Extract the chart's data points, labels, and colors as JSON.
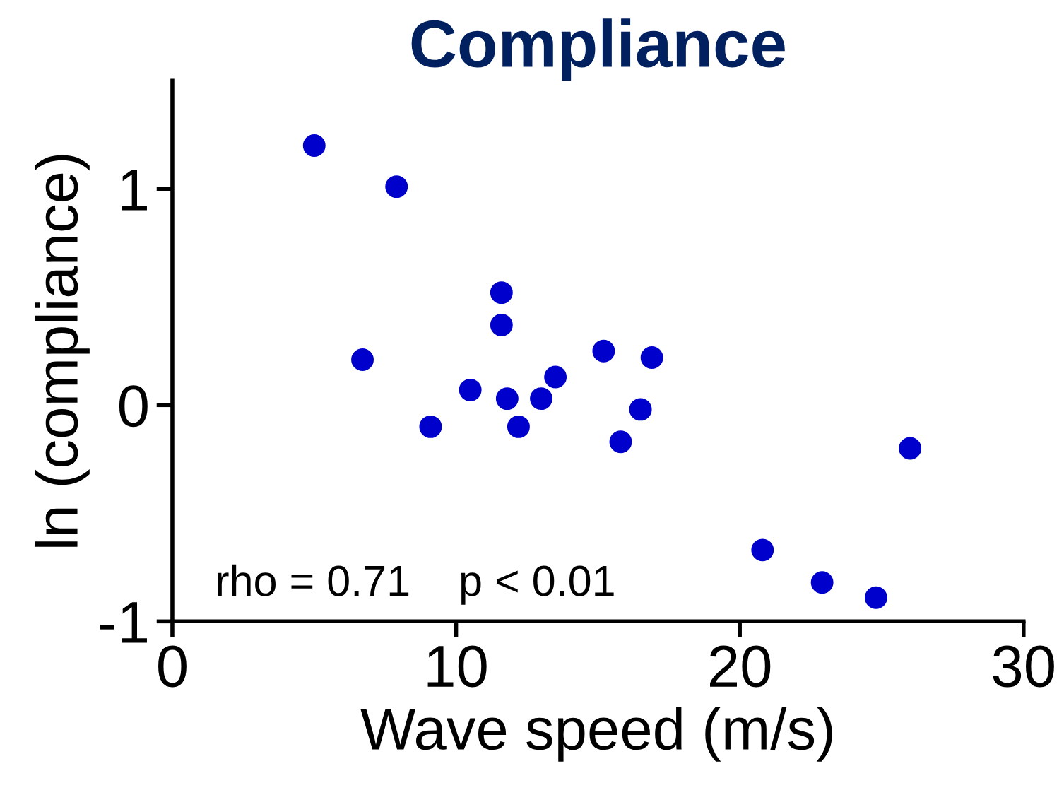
{
  "chart_data": {
    "type": "scatter",
    "title": "Compliance",
    "xlabel": "Wave speed (m/s)",
    "ylabel": "ln (compliance)",
    "x": [
      5.0,
      7.9,
      11.6,
      11.6,
      6.7,
      15.2,
      16.9,
      10.5,
      13.5,
      11.8,
      13.0,
      9.1,
      12.2,
      16.5,
      15.8,
      26.0,
      20.8,
      22.9,
      24.8
    ],
    "series": [
      {
        "color": "#0000cc",
        "values": [
          1.2,
          1.01,
          0.52,
          0.37,
          0.21,
          0.25,
          0.22,
          0.07,
          0.13,
          0.03,
          0.03,
          -0.1,
          -0.1,
          -0.02,
          -0.17,
          -0.2,
          -0.67,
          -0.82,
          -0.89
        ]
      }
    ],
    "xlim": [
      0,
      30
    ],
    "ylim": [
      -1,
      1.5
    ],
    "xticks": [
      0,
      10,
      20,
      30
    ],
    "yticks": [
      -1,
      0,
      1
    ],
    "marker": "circle",
    "grid": false,
    "legend": false,
    "annotations": [
      "rho = 0.71    p < 0.01"
    ]
  }
}
